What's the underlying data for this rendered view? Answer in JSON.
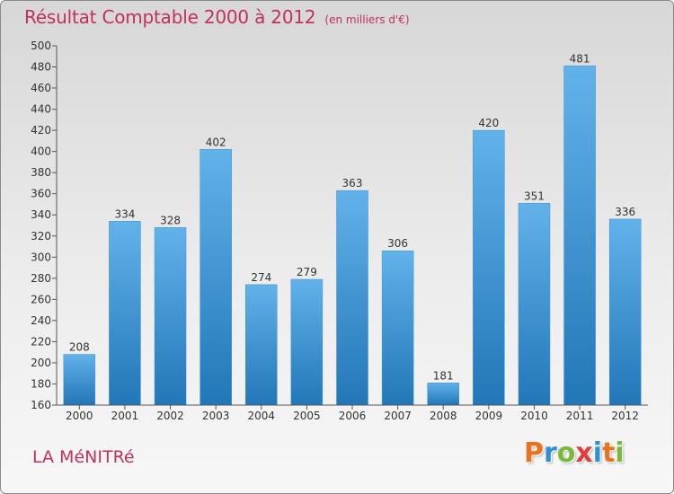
{
  "title": "Résultat Comptable 2000 à 2012",
  "subtitle": "(en milliers d'€)",
  "commune": "LA MéNITRé",
  "logo": {
    "letters": [
      "P",
      "r",
      "o",
      "x",
      "i",
      "t",
      "i"
    ],
    "colors": [
      "#e8731f",
      "#2f8fd4",
      "#7ab93a",
      "#e23b3b",
      "#2f8fd4",
      "#e8731f",
      "#7ab93a"
    ]
  },
  "colors": {
    "accent": "#c1315a",
    "bar_top": "#62b2ea",
    "bar_bottom": "#2277b8",
    "axis": "#555555"
  },
  "chart_data": {
    "type": "bar",
    "categories": [
      "2000",
      "2001",
      "2002",
      "2003",
      "2004",
      "2005",
      "2006",
      "2007",
      "2008",
      "2009",
      "2010",
      "2011",
      "2012"
    ],
    "values": [
      208,
      334,
      328,
      402,
      274,
      279,
      363,
      306,
      181,
      420,
      351,
      481,
      336
    ],
    "ylim": [
      160,
      500
    ],
    "yticks": [
      160,
      180,
      200,
      220,
      240,
      260,
      280,
      300,
      320,
      340,
      360,
      380,
      400,
      420,
      440,
      460,
      480,
      500
    ],
    "grid": false,
    "data_labels": true
  }
}
